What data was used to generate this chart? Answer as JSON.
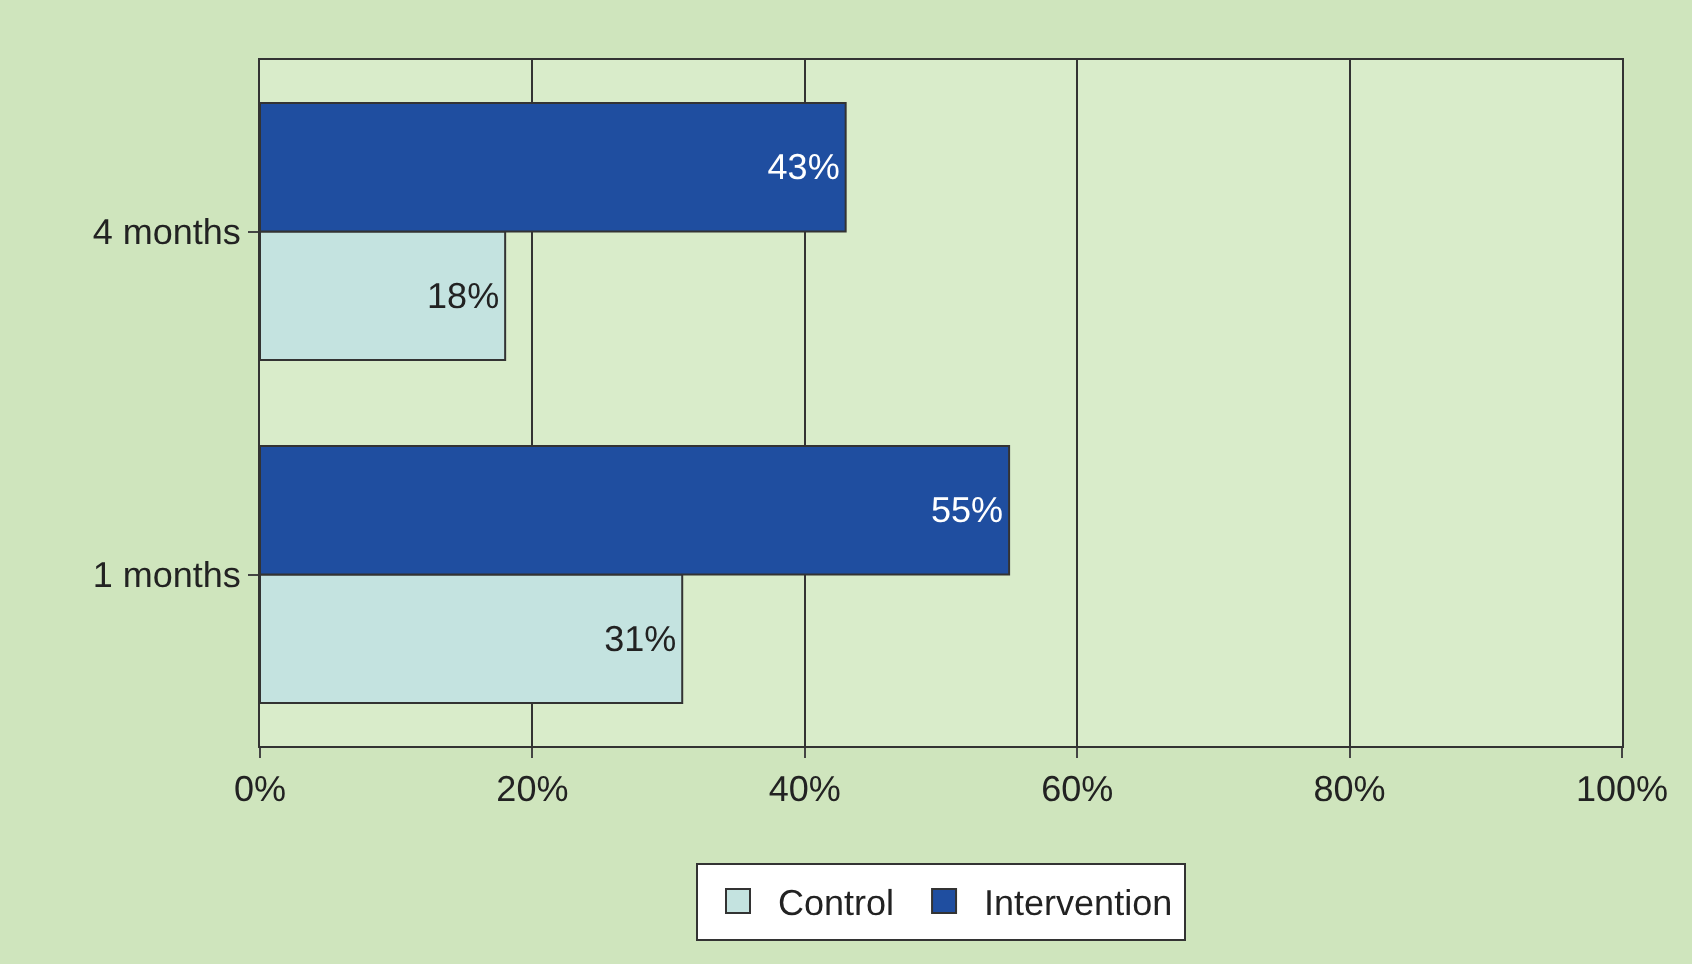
{
  "chart_data": {
    "type": "bar",
    "orientation": "horizontal",
    "categories": [
      "4 months",
      "1 months"
    ],
    "series": [
      {
        "name": "Control",
        "color": "#c4e3e0",
        "values": [
          18,
          31
        ],
        "value_labels": [
          "18%",
          "31%"
        ]
      },
      {
        "name": "Intervention",
        "color": "#1f4ea0",
        "values": [
          43,
          55
        ],
        "value_labels": [
          "43%",
          "55%"
        ]
      }
    ],
    "xlim": [
      0,
      100
    ],
    "xticks": [
      {
        "value": 0,
        "label": "0%"
      },
      {
        "value": 20,
        "label": "20%"
      },
      {
        "value": 40,
        "label": "40%"
      },
      {
        "value": 60,
        "label": "60%"
      },
      {
        "value": 80,
        "label": "80%"
      },
      {
        "value": 100,
        "label": "100%"
      }
    ],
    "grid": "x",
    "legend": "bottom"
  }
}
